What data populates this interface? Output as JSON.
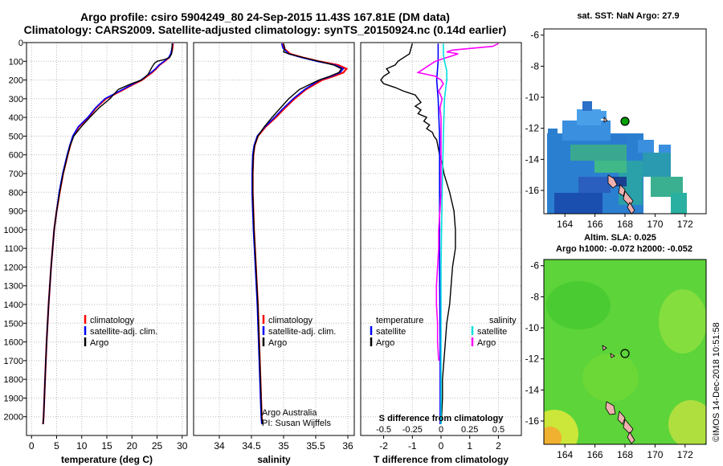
{
  "header": {
    "title_line1": "Argo profile: csiro 5904249_80 24-Sep-2015 11.43S 167.81E (DM data)",
    "title_line2": "Climatology: CARS2009. Satellite-adjusted climatology: synTS_20150924.nc (0.14d earlier)"
  },
  "maps": {
    "sst_title": "sat. SST: NaN Argo: 27.9",
    "sla_title_1": "Altim. SLA: 0.025",
    "sla_title_2": "Argo h1000: -0.072 h2000: -0.052",
    "lon_ticks": [
      "164",
      "166",
      "168",
      "170",
      "172"
    ],
    "lat_ticks": [
      "-6",
      "-8",
      "-10",
      "-12",
      "-14",
      "-16"
    ]
  },
  "footer": {
    "imos_stamp": "©IMOS 14-Dec-2018 10:51:58",
    "credit_1": "Argo Australia",
    "credit_2": "PI: Susan Wijffels"
  },
  "colors": {
    "climatology": "#ff0000",
    "satellite": "#0000ff",
    "argo": "#000000",
    "salinity_satellite": "#00e0e0",
    "salinity_argo": "#ff00ff"
  },
  "chart_data": [
    {
      "type": "line",
      "name": "temperature profile",
      "xlabel": "temperature (deg C)",
      "ylabel": "depth",
      "xlim": [
        -1,
        31
      ],
      "ylim": [
        2100,
        0
      ],
      "xticks": [
        "0",
        "5",
        "10",
        "15",
        "20",
        "25",
        "30"
      ],
      "yticks": [
        "0",
        "100",
        "200",
        "300",
        "400",
        "500",
        "600",
        "700",
        "800",
        "900",
        "1000",
        "1100",
        "1200",
        "1300",
        "1400",
        "1500",
        "1600",
        "1700",
        "1800",
        "1900",
        "2000"
      ],
      "legend": [
        "climatology",
        "satellite-adj. clim.",
        "Argo"
      ],
      "series": [
        {
          "name": "climatology",
          "depth": [
            5,
            20,
            40,
            60,
            80,
            100,
            120,
            140,
            160,
            180,
            200,
            220,
            250,
            300,
            350,
            400,
            450,
            500,
            550,
            600,
            700,
            800,
            900,
            1000,
            1200,
            1400,
            1600,
            1800,
            2000,
            2040
          ],
          "values": [
            28.2,
            28.1,
            28.0,
            27.8,
            27.4,
            26.5,
            25.5,
            24.8,
            24.0,
            23.0,
            22.0,
            20.5,
            18.4,
            14.8,
            12.8,
            11.3,
            9.4,
            8.3,
            7.7,
            7.2,
            6.3,
            5.6,
            5.0,
            4.5,
            3.9,
            3.4,
            3.0,
            2.7,
            2.4,
            2.3
          ]
        },
        {
          "name": "satellite",
          "depth": [
            5,
            20,
            40,
            60,
            80,
            100,
            120,
            140,
            160,
            180,
            200,
            220,
            250,
            300,
            350,
            400,
            450,
            500,
            550,
            600,
            700,
            800,
            900,
            1000,
            1200,
            1400,
            1600,
            1800,
            2000,
            2040
          ],
          "values": [
            28.1,
            28.0,
            27.9,
            27.7,
            27.3,
            26.4,
            25.4,
            24.7,
            23.8,
            22.8,
            21.8,
            20.3,
            18.2,
            14.6,
            12.7,
            11.2,
            9.3,
            8.2,
            7.6,
            7.1,
            6.2,
            5.5,
            5.0,
            4.5,
            3.9,
            3.4,
            3.0,
            2.7,
            2.4,
            2.3
          ]
        },
        {
          "name": "Argo",
          "depth": [
            5,
            30,
            60,
            80,
            90,
            100,
            110,
            130,
            150,
            170,
            190,
            200,
            220,
            250,
            300,
            350,
            400,
            450,
            500,
            550,
            600,
            700,
            800,
            900,
            1000,
            1200,
            1400,
            1600,
            1800,
            2000,
            2040
          ],
          "values": [
            28.0,
            28.0,
            27.9,
            27.5,
            26.5,
            25.0,
            24.5,
            24.0,
            23.6,
            23.2,
            22.4,
            21.9,
            19.9,
            17.3,
            15.6,
            13.4,
            11.6,
            9.9,
            8.4,
            7.7,
            7.2,
            6.3,
            5.6,
            5.0,
            4.5,
            3.9,
            3.4,
            3.0,
            2.7,
            2.4,
            2.3
          ]
        }
      ]
    },
    {
      "type": "line",
      "name": "salinity profile",
      "xlabel": "salinity",
      "xlim": [
        33.6,
        36.1
      ],
      "ylim": [
        2100,
        0
      ],
      "xticks": [
        "34",
        "34.5",
        "35",
        "35.5",
        "36"
      ],
      "legend": [
        "climatology",
        "satellite-adj. clim.",
        "Argo"
      ],
      "series": [
        {
          "name": "climatology",
          "depth": [
            5,
            30,
            60,
            80,
            100,
            120,
            140,
            160,
            180,
            200,
            250,
            300,
            350,
            400,
            450,
            500,
            550,
            600,
            700,
            800,
            900,
            1000,
            1200,
            1400,
            1600,
            1800,
            2000,
            2040
          ],
          "values": [
            34.98,
            35.0,
            35.1,
            35.3,
            35.55,
            35.85,
            35.98,
            35.93,
            35.78,
            35.6,
            35.35,
            35.17,
            35.02,
            34.88,
            34.72,
            34.6,
            34.55,
            34.53,
            34.52,
            34.52,
            34.53,
            34.54,
            34.57,
            34.6,
            34.62,
            34.64,
            34.66,
            34.67
          ]
        },
        {
          "name": "satellite",
          "depth": [
            5,
            30,
            60,
            80,
            100,
            120,
            140,
            160,
            180,
            200,
            250,
            300,
            350,
            400,
            450,
            500,
            550,
            600,
            700,
            800,
            900,
            1000,
            1200,
            1400,
            1600,
            1800,
            2000,
            2040
          ],
          "values": [
            34.97,
            34.99,
            35.08,
            35.28,
            35.52,
            35.8,
            35.93,
            35.88,
            35.74,
            35.56,
            35.33,
            35.15,
            35.0,
            34.86,
            34.71,
            34.59,
            34.54,
            34.52,
            34.51,
            34.51,
            34.52,
            34.53,
            34.56,
            34.59,
            34.61,
            34.63,
            34.65,
            34.66
          ]
        },
        {
          "name": "Argo",
          "depth": [
            5,
            30,
            50,
            60,
            80,
            100,
            120,
            140,
            160,
            180,
            200,
            250,
            300,
            350,
            400,
            450,
            500,
            550,
            600,
            700,
            800,
            900,
            1000,
            1200,
            1400,
            1600,
            1800,
            2000,
            2040
          ],
          "values": [
            35.0,
            35.02,
            35.0,
            35.08,
            35.3,
            35.55,
            35.78,
            35.9,
            35.86,
            35.72,
            35.55,
            35.25,
            35.08,
            34.95,
            34.82,
            34.7,
            34.6,
            34.55,
            34.53,
            34.52,
            34.52,
            34.53,
            34.54,
            34.57,
            34.6,
            34.62,
            34.64,
            34.66,
            34.67
          ]
        }
      ]
    },
    {
      "type": "line",
      "name": "difference from climatology",
      "xlabel": "T difference from climatology",
      "xlabel_top": "S difference from climatology",
      "xlim": [
        -2.8,
        2.8
      ],
      "ylim": [
        2100,
        0
      ],
      "xticks": [
        "-2",
        "-1",
        "0",
        "1",
        "2"
      ],
      "xticks_top": [
        "-0.5",
        "-0.25",
        "0",
        "0.25",
        "0.5"
      ],
      "legend_temperature": {
        "heading": "temperature",
        "items": [
          "satellite",
          "Argo"
        ]
      },
      "legend_salinity": {
        "heading": "salinity",
        "items": [
          "satellite",
          "Argo"
        ]
      },
      "series": [
        {
          "name": "temperature satellite",
          "depth": [
            5,
            100,
            200,
            300,
            500,
            800,
            1200,
            1600,
            2000,
            2040
          ],
          "values": [
            -0.1,
            -0.1,
            -0.15,
            -0.1,
            -0.05,
            -0.05,
            -0.05,
            -0.03,
            -0.03,
            -0.03
          ]
        },
        {
          "name": "temperature Argo",
          "depth": [
            5,
            60,
            80,
            100,
            120,
            140,
            160,
            180,
            200,
            220,
            240,
            260,
            280,
            300,
            320,
            340,
            360,
            380,
            400,
            420,
            440,
            460,
            480,
            500,
            520,
            560,
            600,
            650,
            700,
            800,
            900,
            1000,
            1100,
            1200,
            1300,
            1400,
            1500,
            1600,
            1700,
            1800,
            1900,
            2000,
            2040
          ],
          "values": [
            -1.0,
            -1.1,
            -1.3,
            -1.5,
            -1.6,
            -1.9,
            -1.8,
            -2.0,
            -2.1,
            -2.0,
            -1.6,
            -1.3,
            -0.9,
            -0.8,
            -0.7,
            -0.9,
            -0.7,
            -0.8,
            -0.5,
            -0.6,
            -0.4,
            -0.5,
            -0.3,
            -0.25,
            -0.15,
            -0.1,
            -0.05,
            0.05,
            0.1,
            0.3,
            0.45,
            0.5,
            0.5,
            0.4,
            0.35,
            0.3,
            0.2,
            0.15,
            0.1,
            0.05,
            0.05,
            0.02,
            0.0
          ]
        },
        {
          "name": "salinity satellite",
          "depth": [
            5,
            60,
            100,
            150,
            200,
            300,
            500,
            800,
            1200,
            1600,
            2000,
            2040
          ],
          "values": [
            0.02,
            0.02,
            0.03,
            0.05,
            0.05,
            0.03,
            0.02,
            0.01,
            0.0,
            0.0,
            0.0,
            0.0
          ]
        },
        {
          "name": "salinity Argo",
          "depth": [
            5,
            20,
            40,
            50,
            60,
            80,
            100,
            120,
            140,
            160,
            180,
            200,
            220,
            240,
            260,
            300,
            350,
            400,
            500,
            600,
            700,
            800,
            900,
            1000,
            1100,
            1200,
            1300,
            1400,
            1500,
            1600,
            1700
          ],
          "values": [
            0.5,
            0.45,
            0.1,
            0.05,
            0.15,
            0.05,
            -0.05,
            -0.1,
            -0.15,
            -0.2,
            -0.05,
            0.0,
            0.02,
            0.0,
            -0.02,
            0.01,
            -0.01,
            0.0,
            0.0,
            0.0,
            0.0,
            0.0,
            -0.01,
            -0.02,
            -0.02,
            -0.03,
            -0.04,
            -0.04,
            -0.03,
            -0.03,
            -0.02
          ]
        }
      ]
    }
  ]
}
